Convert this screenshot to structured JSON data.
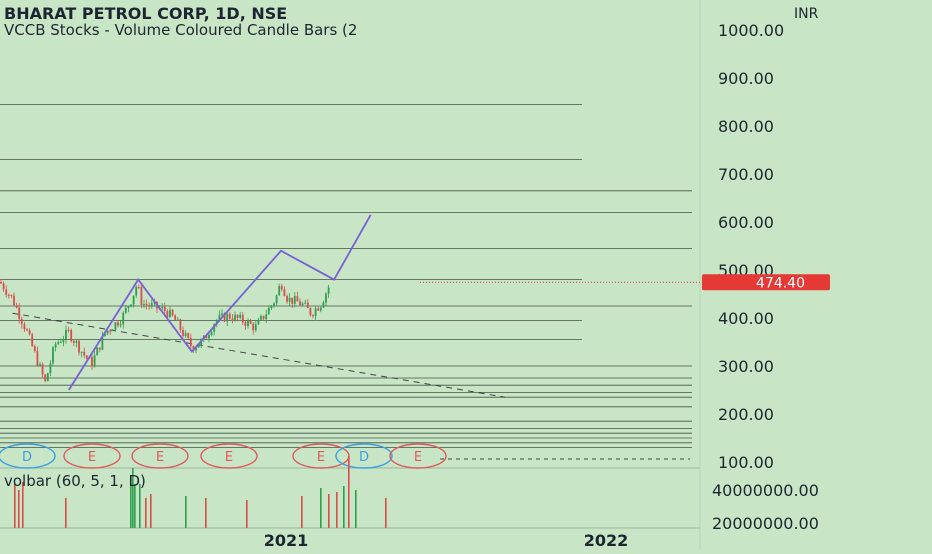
{
  "header": {
    "title": "BHARAT PETROL CORP, 1D, NSE",
    "indicator": "VCCB Stocks - Volume Coloured Candle Bars (2"
  },
  "currency": "INR",
  "last_price_label": "474.40",
  "volume_label": "volbar (60, 5, 1, D)",
  "colors": {
    "background": "#c8e6c6",
    "up": "#2e9e4f",
    "down": "#d94c4c",
    "pattern": "#7b5fd6",
    "price_badge": "#e53935"
  },
  "events": [
    "D",
    "E",
    "E",
    "E",
    "E",
    "D",
    "E"
  ],
  "chart_data": [
    {
      "type": "candlestick",
      "title": "BHARAT PETROL CORP, 1D, NSE",
      "y_ticks": [
        "1000.00",
        "900.00",
        "800.00",
        "700.00",
        "600.00",
        "500.00",
        "400.00",
        "300.00",
        "200.00",
        "100.00"
      ],
      "x_ticks": [
        "2021",
        "2022"
      ],
      "ylim": [
        100,
        1000
      ],
      "last_price": 474.4,
      "horizontal_levels": [
        845,
        730,
        665,
        620,
        545,
        480,
        425,
        395,
        355,
        300,
        275,
        260,
        245,
        235,
        215,
        185,
        170,
        160,
        150,
        140,
        130
      ],
      "pattern_line": [
        {
          "x": "2020-04-15",
          "y": 250
        },
        {
          "x": "2020-07-30",
          "y": 480
        },
        {
          "x": "2020-10-20",
          "y": 330
        },
        {
          "x": "2021-03-05",
          "y": 540
        },
        {
          "x": "2021-05-25",
          "y": 480
        },
        {
          "x": "2021-07-20",
          "y": 615
        }
      ],
      "trendline_dashed": [
        {
          "x": "2020-01-20",
          "y": 410
        },
        {
          "x": "2022-02-10",
          "y": 235
        }
      ],
      "price_path": [
        {
          "x": "2020-01-01",
          "y": 475
        },
        {
          "x": "2020-01-20",
          "y": 440
        },
        {
          "x": "2020-02-10",
          "y": 375
        },
        {
          "x": "2020-03-10",
          "y": 265
        },
        {
          "x": "2020-03-25",
          "y": 345
        },
        {
          "x": "2020-04-15",
          "y": 370
        },
        {
          "x": "2020-05-10",
          "y": 320
        },
        {
          "x": "2020-05-20",
          "y": 305
        },
        {
          "x": "2020-06-10",
          "y": 370
        },
        {
          "x": "2020-07-05",
          "y": 400
        },
        {
          "x": "2020-07-20",
          "y": 440
        },
        {
          "x": "2020-07-28",
          "y": 470
        },
        {
          "x": "2020-08-05",
          "y": 430
        },
        {
          "x": "2020-08-20",
          "y": 425
        },
        {
          "x": "2020-09-10",
          "y": 415
        },
        {
          "x": "2020-09-25",
          "y": 395
        },
        {
          "x": "2020-10-10",
          "y": 360
        },
        {
          "x": "2020-10-20",
          "y": 340
        },
        {
          "x": "2020-11-05",
          "y": 350
        },
        {
          "x": "2020-11-25",
          "y": 395
        },
        {
          "x": "2020-12-15",
          "y": 405
        },
        {
          "x": "2021-01-05",
          "y": 395
        },
        {
          "x": "2021-01-25",
          "y": 380
        },
        {
          "x": "2021-02-10",
          "y": 410
        },
        {
          "x": "2021-02-25",
          "y": 440
        },
        {
          "x": "2021-03-05",
          "y": 475
        },
        {
          "x": "2021-03-15",
          "y": 440
        },
        {
          "x": "2021-04-05",
          "y": 430
        },
        {
          "x": "2021-04-20",
          "y": 410
        },
        {
          "x": "2021-05-05",
          "y": 430
        },
        {
          "x": "2021-05-20",
          "y": 474.4
        }
      ]
    },
    {
      "type": "bar",
      "title": "volbar (60, 5, 1, D)",
      "y_ticks": [
        "40000000.00",
        "20000000.00"
      ],
      "ylim": [
        20000000,
        40000000
      ]
    }
  ]
}
